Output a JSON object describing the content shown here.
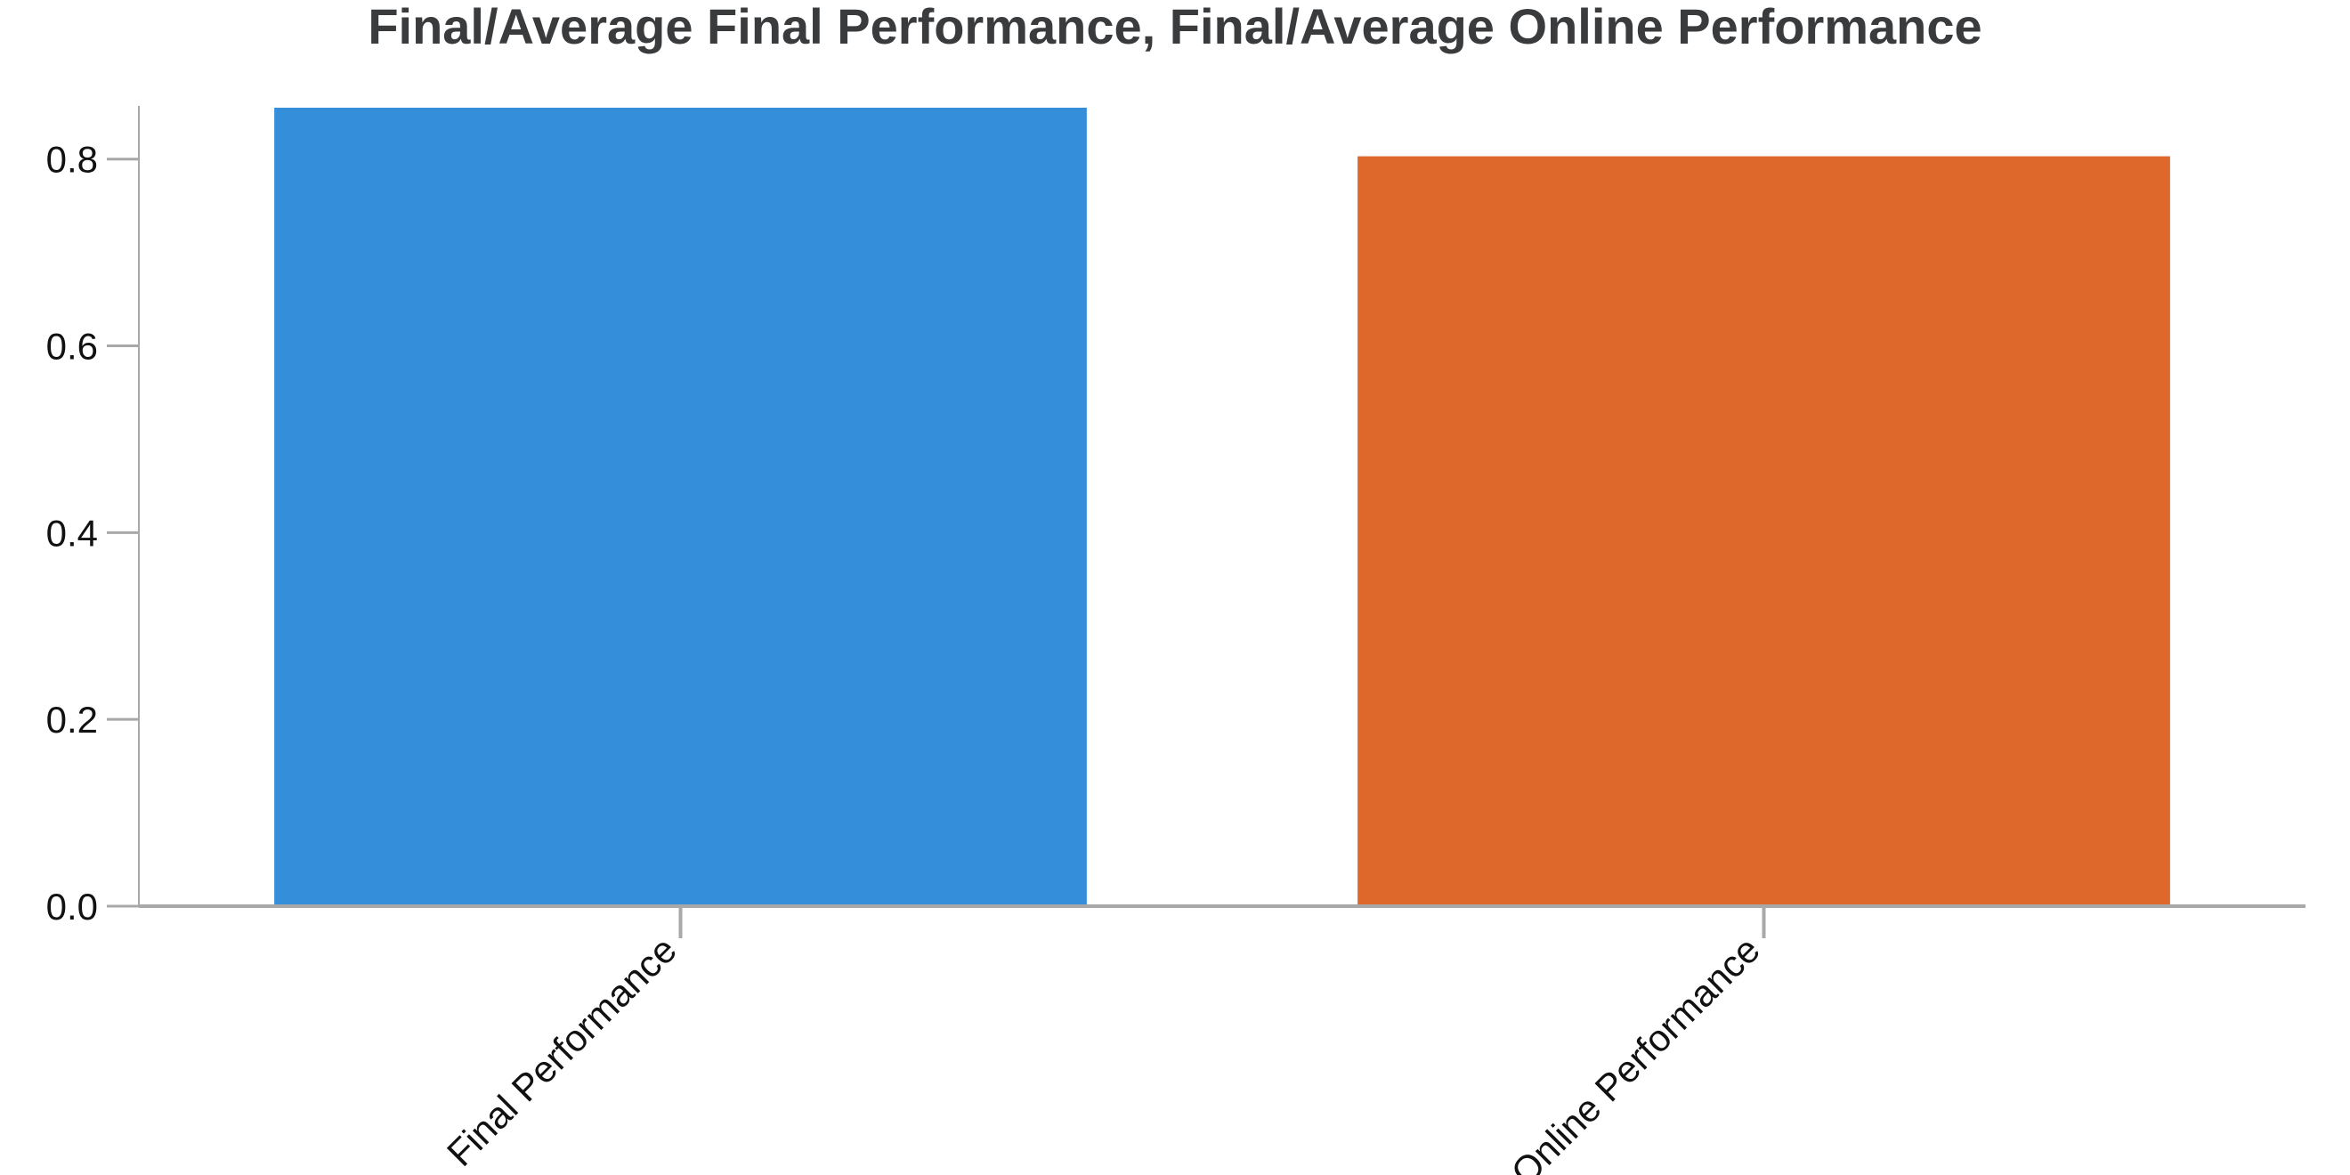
{
  "chart_data": {
    "type": "bar",
    "title": "Final/Average Final Performance, Final/Average Online Performance",
    "xlabel": "",
    "ylabel": "",
    "categories": [
      "Final Performance",
      "Online Performance"
    ],
    "values": [
      0.855,
      0.803
    ],
    "colors": [
      "#348ed9",
      "#de672b"
    ],
    "ylim": [
      0,
      0.855
    ],
    "yticks": [
      0.0,
      0.2,
      0.4,
      0.6,
      0.8
    ],
    "ytick_labels": [
      "0.0",
      "0.2",
      "0.4",
      "0.6",
      "0.8"
    ],
    "x_tick_rotation": "45-degree",
    "grid": false,
    "legend": "none"
  }
}
